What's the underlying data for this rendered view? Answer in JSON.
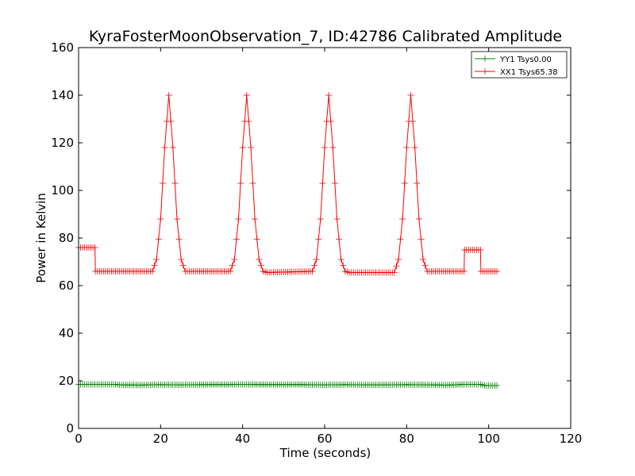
{
  "chart_data": {
    "type": "line",
    "title": "KyraFosterMoonObservation_7, ID:42786 Calibrated Amplitude",
    "xlabel": "Time (seconds)",
    "ylabel": "Power in Kelvin",
    "xlim": [
      0,
      120
    ],
    "ylim": [
      0,
      160
    ],
    "xticks": [
      "0",
      "20",
      "40",
      "60",
      "80",
      "100",
      "120"
    ],
    "yticks": [
      "0",
      "20",
      "40",
      "60",
      "80",
      "100",
      "120",
      "140",
      "160"
    ],
    "grid": false,
    "legend_position": "top-right",
    "marker": "plus",
    "series": [
      {
        "name": "YY1 Tsys0.00",
        "color": "#008000",
        "x": [
          0,
          4,
          9,
          10,
          15,
          20,
          25,
          30,
          35,
          40,
          45,
          50,
          55,
          60,
          65,
          70,
          75,
          80,
          85,
          90,
          94,
          98,
          99,
          102
        ],
        "y": [
          18.5,
          18.5,
          18.5,
          18.3,
          18.2,
          18.4,
          18.3,
          18.4,
          18.4,
          18.5,
          18.4,
          18.4,
          18.4,
          18.3,
          18.4,
          18.3,
          18.3,
          18.4,
          18.3,
          18.2,
          18.5,
          18.5,
          18.0,
          18.0
        ]
      },
      {
        "name": "XX1 Tsys65.38",
        "color": "#ff0000",
        "x": [
          0,
          4,
          4.1,
          9,
          18,
          19,
          20,
          21,
          22,
          23,
          24,
          25,
          26,
          37,
          38,
          39,
          40,
          41,
          42,
          43,
          44,
          45,
          46,
          57,
          58,
          59,
          60,
          61,
          62,
          63,
          64,
          65,
          66,
          77,
          78,
          79,
          80,
          81,
          82,
          83,
          84,
          85,
          86,
          94,
          94.1,
          98,
          98.1,
          102
        ],
        "y": [
          76,
          76,
          66,
          66,
          66,
          71,
          88,
          118,
          140,
          118,
          88,
          71,
          66,
          66,
          71,
          88,
          118,
          140,
          118,
          88,
          71,
          66,
          65.5,
          66,
          71,
          88,
          118,
          140,
          118,
          88,
          71,
          66,
          65.5,
          65.5,
          71,
          88,
          118,
          140,
          118,
          88,
          71,
          66,
          66,
          66,
          75,
          75,
          66,
          66
        ]
      }
    ]
  }
}
